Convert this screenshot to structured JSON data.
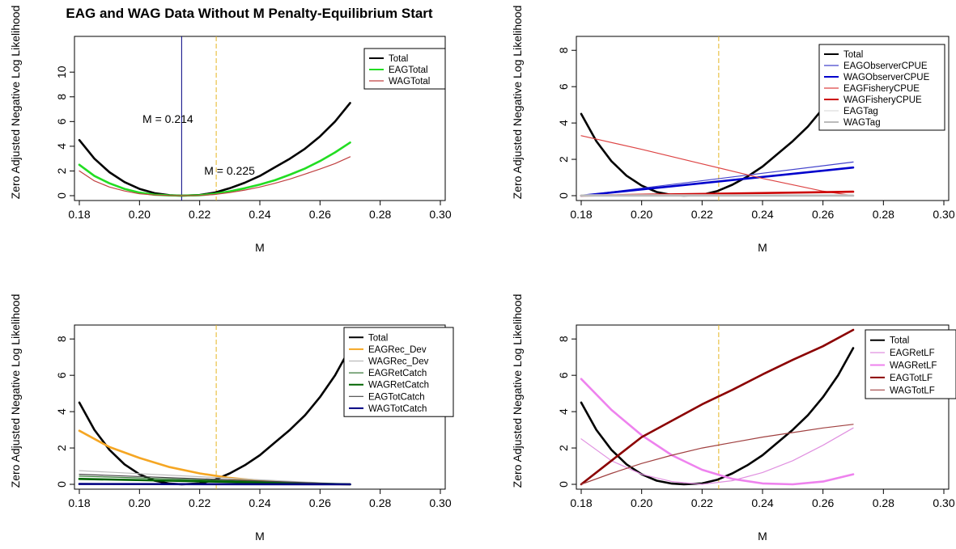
{
  "title": "EAG and WAG Data Without M Penalty-Equilibrium Start",
  "colors": {
    "black": "#000000",
    "green": "#22dd22",
    "brown": "#c04040",
    "blue_light": "#4444cc",
    "blue_dark": "#0000cc",
    "red_light": "#dd4444",
    "red_dark": "#cc0000",
    "gray_light": "#dddddd",
    "gray": "#bbbbbb",
    "orange": "#f5a623",
    "dkgreen": "#006400",
    "dkgreen2": "#3a7a3a",
    "dkgray": "#444444",
    "navy": "#000080",
    "violet": "#ee82ee",
    "violet2": "#e090e0",
    "maroon": "#8b0000",
    "maroon2": "#a04040",
    "vline": "#000080",
    "orange_vline": "#e6b422"
  },
  "chart_data": [
    {
      "type": "line",
      "xlabel": "M",
      "ylabel": "Zero Adjusted Negative Log Likelihood",
      "xlim": [
        0.18,
        0.3
      ],
      "ylim": [
        0,
        12.5
      ],
      "xticks": [
        "0.18",
        "0.20",
        "0.22",
        "0.24",
        "0.26",
        "0.28",
        "0.30"
      ],
      "yticks": [
        "0",
        "2",
        "4",
        "6",
        "8",
        "10"
      ],
      "legend_position": "top-right",
      "vlines": [
        {
          "x": 0.214,
          "color_key": "vline",
          "dashed": false
        },
        {
          "x": 0.2255,
          "color_key": "orange_vline",
          "dashed": true
        }
      ],
      "annotations": [
        {
          "text": "M = 0.214",
          "x": 0.201,
          "y": 5.9
        },
        {
          "text": "M = 0.225",
          "x": 0.2215,
          "y": 1.7
        }
      ],
      "series": [
        {
          "name": "Total",
          "color_key": "black",
          "width": 2.6,
          "x": [
            0.18,
            0.185,
            0.19,
            0.195,
            0.2,
            0.205,
            0.21,
            0.214,
            0.22,
            0.225,
            0.23,
            0.235,
            0.24,
            0.245,
            0.25,
            0.255,
            0.26,
            0.265,
            0.27
          ],
          "y": [
            4.5,
            3.0,
            1.9,
            1.1,
            0.55,
            0.2,
            0.04,
            0.0,
            0.05,
            0.25,
            0.6,
            1.05,
            1.6,
            2.3,
            3.0,
            3.8,
            4.8,
            6.0,
            7.5
          ]
        },
        {
          "name": "EAGTotal",
          "color_key": "green",
          "width": 2.6,
          "x": [
            0.18,
            0.185,
            0.19,
            0.195,
            0.2,
            0.205,
            0.21,
            0.214,
            0.22,
            0.225,
            0.23,
            0.235,
            0.24,
            0.245,
            0.25,
            0.255,
            0.26,
            0.265,
            0.27
          ],
          "y": [
            2.5,
            1.6,
            1.0,
            0.55,
            0.25,
            0.08,
            0.02,
            0.0,
            0.04,
            0.15,
            0.35,
            0.6,
            0.9,
            1.25,
            1.7,
            2.2,
            2.8,
            3.5,
            4.3
          ]
        },
        {
          "name": "WAGTotal",
          "color_key": "brown",
          "width": 1.2,
          "x": [
            0.18,
            0.185,
            0.19,
            0.195,
            0.2,
            0.205,
            0.21,
            0.214,
            0.22,
            0.225,
            0.23,
            0.235,
            0.24,
            0.245,
            0.25,
            0.255,
            0.26,
            0.265,
            0.27
          ],
          "y": [
            2.0,
            1.2,
            0.7,
            0.38,
            0.15,
            0.05,
            0.01,
            0.0,
            0.02,
            0.1,
            0.25,
            0.45,
            0.7,
            1.0,
            1.35,
            1.75,
            2.15,
            2.6,
            3.15
          ]
        }
      ]
    },
    {
      "type": "line",
      "xlabel": "M",
      "ylabel": "Zero Adjusted Negative Log Likelihood",
      "xlim": [
        0.18,
        0.3
      ],
      "ylim": [
        0,
        8.5
      ],
      "xticks": [
        "0.18",
        "0.20",
        "0.22",
        "0.24",
        "0.26",
        "0.28",
        "0.30"
      ],
      "yticks": [
        "0",
        "2",
        "4",
        "6",
        "8"
      ],
      "legend_position": "top-right",
      "vlines": [
        {
          "x": 0.2255,
          "color_key": "orange_vline",
          "dashed": true
        }
      ],
      "annotations": [],
      "series": [
        {
          "name": "Total",
          "color_key": "black",
          "width": 2.6,
          "x": [
            0.18,
            0.185,
            0.19,
            0.195,
            0.2,
            0.205,
            0.21,
            0.214,
            0.22,
            0.225,
            0.23,
            0.235,
            0.24,
            0.245,
            0.25,
            0.255,
            0.26,
            0.265,
            0.27
          ],
          "y": [
            4.5,
            3.0,
            1.9,
            1.1,
            0.55,
            0.2,
            0.04,
            0.0,
            0.05,
            0.25,
            0.6,
            1.05,
            1.6,
            2.3,
            3.0,
            3.8,
            4.8,
            6.0,
            7.5
          ]
        },
        {
          "name": "EAGObserverCPUE",
          "color_key": "blue_light",
          "width": 1.2,
          "x": [
            0.18,
            0.27
          ],
          "y": [
            0.0,
            1.85
          ]
        },
        {
          "name": "WAGObserverCPUE",
          "color_key": "blue_dark",
          "width": 2.6,
          "x": [
            0.18,
            0.27
          ],
          "y": [
            0.0,
            1.55
          ]
        },
        {
          "name": "EAGFisheryCPUE",
          "color_key": "red_light",
          "width": 1.2,
          "x": [
            0.18,
            0.2,
            0.22,
            0.24,
            0.26,
            0.27
          ],
          "y": [
            3.3,
            2.55,
            1.75,
            0.95,
            0.25,
            0.0
          ]
        },
        {
          "name": "WAGFisheryCPUE",
          "color_key": "red_dark",
          "width": 2.6,
          "x": [
            0.18,
            0.27
          ],
          "y": [
            0.0,
            0.22
          ]
        },
        {
          "name": "EAGTag",
          "color_key": "gray_light",
          "width": 1.2,
          "x": [
            0.18,
            0.27
          ],
          "y": [
            0.05,
            0.05
          ]
        },
        {
          "name": "WAGTag",
          "color_key": "gray",
          "width": 2.6,
          "x": [
            0.18,
            0.27
          ],
          "y": [
            0.0,
            0.0
          ]
        }
      ]
    },
    {
      "type": "line",
      "xlabel": "M",
      "ylabel": "Zero Adjusted Negative Log Likelihood",
      "xlim": [
        0.18,
        0.3
      ],
      "ylim": [
        0,
        8.5
      ],
      "xticks": [
        "0.18",
        "0.20",
        "0.22",
        "0.24",
        "0.26",
        "0.28",
        "0.30"
      ],
      "yticks": [
        "0",
        "2",
        "4",
        "6",
        "8"
      ],
      "legend_position": "top-right",
      "vlines": [
        {
          "x": 0.2255,
          "color_key": "orange_vline",
          "dashed": true
        }
      ],
      "annotations": [],
      "series": [
        {
          "name": "Total",
          "color_key": "black",
          "width": 2.6,
          "x": [
            0.18,
            0.185,
            0.19,
            0.195,
            0.2,
            0.205,
            0.21,
            0.214,
            0.22,
            0.225,
            0.23,
            0.235,
            0.24,
            0.245,
            0.25,
            0.255,
            0.26,
            0.265,
            0.27
          ],
          "y": [
            4.5,
            3.0,
            1.9,
            1.1,
            0.55,
            0.2,
            0.04,
            0.0,
            0.05,
            0.25,
            0.6,
            1.05,
            1.6,
            2.3,
            3.0,
            3.8,
            4.8,
            6.0,
            7.5
          ]
        },
        {
          "name": "EAGRec_Dev",
          "color_key": "orange",
          "width": 2.6,
          "x": [
            0.18,
            0.19,
            0.2,
            0.21,
            0.22,
            0.23,
            0.24,
            0.25,
            0.26,
            0.27
          ],
          "y": [
            2.95,
            2.05,
            1.45,
            0.95,
            0.6,
            0.35,
            0.2,
            0.08,
            0.02,
            0.0
          ]
        },
        {
          "name": "WAGRec_Dev",
          "color_key": "gray",
          "width": 1.2,
          "x": [
            0.18,
            0.27
          ],
          "y": [
            0.75,
            0.0
          ]
        },
        {
          "name": "EAGRetCatch",
          "color_key": "dkgreen2",
          "width": 1.2,
          "x": [
            0.18,
            0.27
          ],
          "y": [
            0.45,
            0.0
          ]
        },
        {
          "name": "WAGRetCatch",
          "color_key": "dkgreen",
          "width": 2.6,
          "x": [
            0.18,
            0.27
          ],
          "y": [
            0.3,
            0.0
          ]
        },
        {
          "name": "EAGTotCatch",
          "color_key": "dkgray",
          "width": 1.2,
          "x": [
            0.18,
            0.27
          ],
          "y": [
            0.55,
            0.0
          ]
        },
        {
          "name": "WAGTotCatch",
          "color_key": "navy",
          "width": 2.6,
          "x": [
            0.18,
            0.27
          ],
          "y": [
            0.02,
            0.0
          ]
        }
      ]
    },
    {
      "type": "line",
      "xlabel": "M",
      "ylabel": "Zero Adjusted Negative Log Likelihood",
      "xlim": [
        0.18,
        0.3
      ],
      "ylim": [
        0,
        8.5
      ],
      "xticks": [
        "0.18",
        "0.20",
        "0.22",
        "0.24",
        "0.26",
        "0.28",
        "0.30"
      ],
      "yticks": [
        "0",
        "2",
        "4",
        "6",
        "8"
      ],
      "legend_position": "top-right",
      "vlines": [
        {
          "x": 0.2255,
          "color_key": "orange_vline",
          "dashed": true
        }
      ],
      "annotations": [],
      "series": [
        {
          "name": "Total",
          "color_key": "black",
          "width": 2.6,
          "x": [
            0.18,
            0.185,
            0.19,
            0.195,
            0.2,
            0.205,
            0.21,
            0.214,
            0.22,
            0.225,
            0.23,
            0.235,
            0.24,
            0.245,
            0.25,
            0.255,
            0.26,
            0.265,
            0.27
          ],
          "y": [
            4.5,
            3.0,
            1.9,
            1.1,
            0.55,
            0.2,
            0.04,
            0.0,
            0.05,
            0.25,
            0.6,
            1.05,
            1.6,
            2.3,
            3.0,
            3.8,
            4.8,
            6.0,
            7.5
          ]
        },
        {
          "name": "EAGRetLF",
          "color_key": "violet2",
          "width": 1.2,
          "x": [
            0.18,
            0.19,
            0.2,
            0.21,
            0.22,
            0.23,
            0.24,
            0.25,
            0.26,
            0.27
          ],
          "y": [
            2.5,
            1.3,
            0.55,
            0.15,
            0.0,
            0.2,
            0.65,
            1.3,
            2.15,
            3.1
          ]
        },
        {
          "name": "WAGRetLF",
          "color_key": "violet",
          "width": 2.6,
          "x": [
            0.18,
            0.19,
            0.2,
            0.21,
            0.22,
            0.23,
            0.24,
            0.25,
            0.26,
            0.27
          ],
          "y": [
            5.8,
            4.1,
            2.7,
            1.6,
            0.8,
            0.3,
            0.05,
            0.0,
            0.15,
            0.55
          ]
        },
        {
          "name": "EAGTotLF",
          "color_key": "maroon",
          "width": 2.6,
          "x": [
            0.18,
            0.19,
            0.2,
            0.21,
            0.22,
            0.23,
            0.24,
            0.25,
            0.26,
            0.27
          ],
          "y": [
            0.0,
            1.3,
            2.6,
            3.5,
            4.4,
            5.2,
            6.05,
            6.85,
            7.6,
            8.5
          ]
        },
        {
          "name": "WAGTotLF",
          "color_key": "maroon2",
          "width": 1.2,
          "x": [
            0.18,
            0.19,
            0.2,
            0.21,
            0.22,
            0.23,
            0.24,
            0.25,
            0.26,
            0.27
          ],
          "y": [
            0.0,
            0.6,
            1.15,
            1.6,
            2.0,
            2.3,
            2.6,
            2.85,
            3.1,
            3.3
          ]
        }
      ]
    }
  ]
}
